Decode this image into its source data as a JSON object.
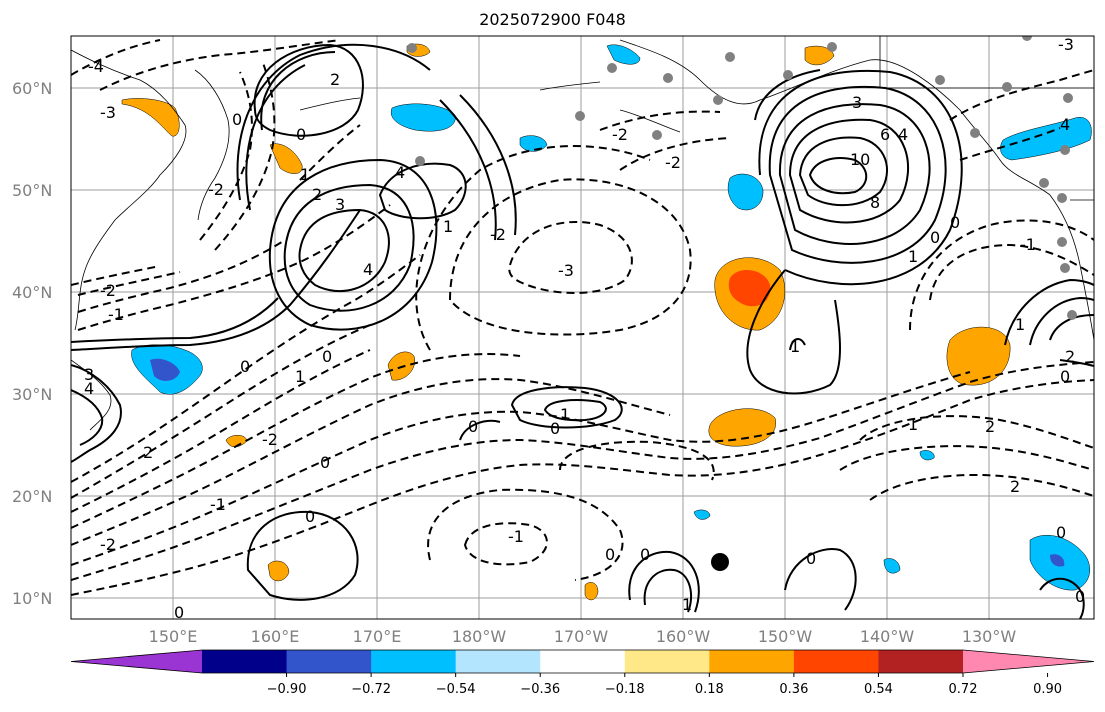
{
  "title": "2025072900 F048",
  "map": {
    "lat_labels": [
      "60°N",
      "50°N",
      "40°N",
      "30°N",
      "20°N",
      "10°N"
    ],
    "lon_labels": [
      "150°E",
      "160°E",
      "170°E",
      "180°W",
      "170°W",
      "160°W",
      "150°W",
      "140°W",
      "130°W"
    ],
    "gridline_color": "#9e9e9e",
    "land_outline_color": "#000000"
  },
  "contour_labels": [
    "-4",
    "-3",
    "-2",
    "-1",
    "0",
    "1",
    "2",
    "3",
    "4",
    "6",
    "8",
    "10"
  ],
  "colorbar": {
    "colors": [
      "#9a35d4",
      "#00008b",
      "#3355cc",
      "#00bfff",
      "#b3e5ff",
      "#ffffff",
      "#ffe888",
      "#ffa500",
      "#ff4500",
      "#b22222",
      "#ff88b0"
    ],
    "ticks": [
      "−0.90",
      "−0.72",
      "−0.54",
      "−0.36",
      "−0.18",
      "0.18",
      "0.36",
      "0.54",
      "0.72",
      "0.90"
    ]
  }
}
